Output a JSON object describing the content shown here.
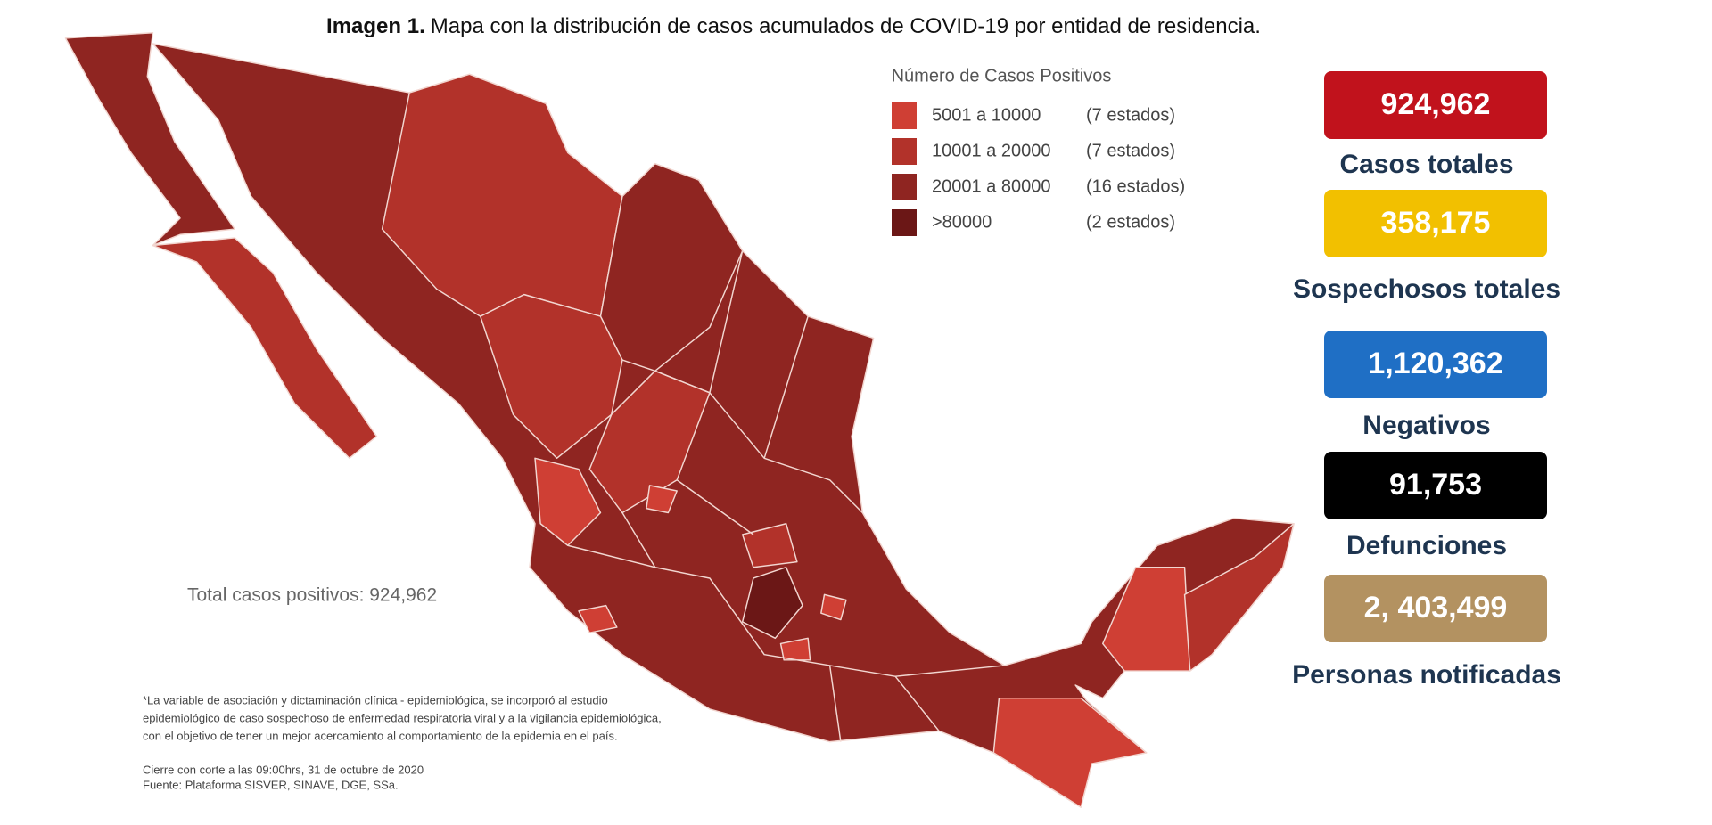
{
  "title": {
    "label": "Imagen 1.",
    "text": "Mapa con la distribución de casos acumulados de COVID-19 por entidad de residencia."
  },
  "legend": {
    "title": "Número de Casos Positivos",
    "items": [
      {
        "range": "5001 a 10000",
        "count": "(7 estados)",
        "color": "#cf3f34"
      },
      {
        "range": "10001 a 20000",
        "count": "(7 estados)",
        "color": "#b2322a"
      },
      {
        "range": "20001 a 80000",
        "count": "(16 estados)",
        "color": "#8f2521"
      },
      {
        "range": ">80000",
        "count": "(2 estados)",
        "color": "#6b1716"
      }
    ]
  },
  "total_note": "Total casos positivos: 924,962",
  "stats": [
    {
      "value": "924,962",
      "label": "Casos totales",
      "color": "#c1121c"
    },
    {
      "value": "358,175",
      "label": "Sospechosos totales",
      "color": "#f2c000"
    },
    {
      "value": "1,120,362",
      "label": "Negativos",
      "color": "#1f6fc5"
    },
    {
      "value": "91,753",
      "label": "Defunciones",
      "color": "#000000"
    },
    {
      "value": "2, 403,499",
      "label": "Personas notificadas",
      "color": "#b39261"
    }
  ],
  "footnote": [
    "*La variable de asociación y dictaminación clínica - epidemiológica, se incorporó al estudio",
    "epidemiológico de caso sospechoso de enfermedad respiratoria viral y a la vigilancia epidemiológica,",
    "con el objetivo de tener un mejor acercamiento al comportamiento de la epidemia en el país."
  ],
  "source": [
    "Cierre con corte a las 09:00hrs, 31 de octubre de 2020",
    "Fuente: Plataforma SISVER, SINAVE, DGE, SSa."
  ]
}
